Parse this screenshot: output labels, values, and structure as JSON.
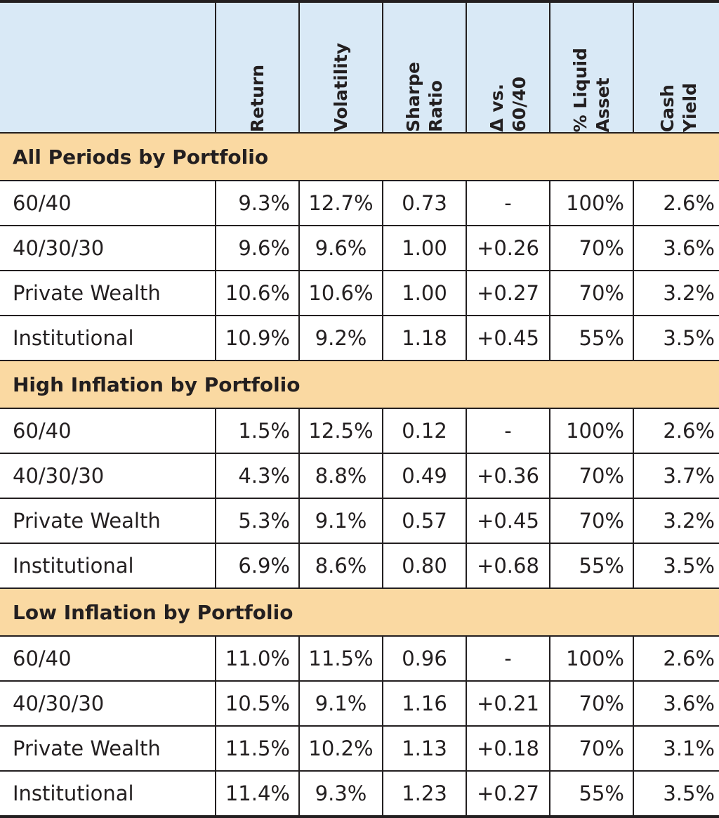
{
  "chart_data": {
    "type": "table",
    "columns": [
      "",
      "Return",
      "Volatility",
      "Sharpe\nRatio",
      "Δ vs.\n60/40",
      "% Liquid\nAsset",
      "Cash\nYield"
    ],
    "sections": [
      {
        "title": "All Periods by Portfolio",
        "rows": [
          [
            "60/40",
            "9.3%",
            "12.7%",
            "0.73",
            "-",
            "100%",
            "2.6%"
          ],
          [
            "40/30/30",
            "9.6%",
            "9.6%",
            "1.00",
            "+0.26",
            "70%",
            "3.6%"
          ],
          [
            "Private Wealth",
            "10.6%",
            "10.6%",
            "1.00",
            "+0.27",
            "70%",
            "3.2%"
          ],
          [
            "Institutional",
            "10.9%",
            "9.2%",
            "1.18",
            "+0.45",
            "55%",
            "3.5%"
          ]
        ]
      },
      {
        "title": "High Inflation by Portfolio",
        "rows": [
          [
            "60/40",
            "1.5%",
            "12.5%",
            "0.12",
            "-",
            "100%",
            "2.6%"
          ],
          [
            "40/30/30",
            "4.3%",
            "8.8%",
            "0.49",
            "+0.36",
            "70%",
            "3.7%"
          ],
          [
            "Private Wealth",
            "5.3%",
            "9.1%",
            "0.57",
            "+0.45",
            "70%",
            "3.2%"
          ],
          [
            "Institutional",
            "6.9%",
            "8.6%",
            "0.80",
            "+0.68",
            "55%",
            "3.5%"
          ]
        ]
      },
      {
        "title": "Low Inflation by Portfolio",
        "rows": [
          [
            "60/40",
            "11.0%",
            "11.5%",
            "0.96",
            "-",
            "100%",
            "2.6%"
          ],
          [
            "40/30/30",
            "10.5%",
            "9.1%",
            "1.16",
            "+0.21",
            "70%",
            "3.6%"
          ],
          [
            "Private Wealth",
            "11.5%",
            "10.2%",
            "1.13",
            "+0.18",
            "70%",
            "3.1%"
          ],
          [
            "Institutional",
            "11.4%",
            "9.3%",
            "1.23",
            "+0.27",
            "55%",
            "3.5%"
          ]
        ]
      }
    ],
    "colors": {
      "header_bg": "#d9e9f6",
      "section_bg": "#fad9a2",
      "border": "#231f20"
    }
  }
}
